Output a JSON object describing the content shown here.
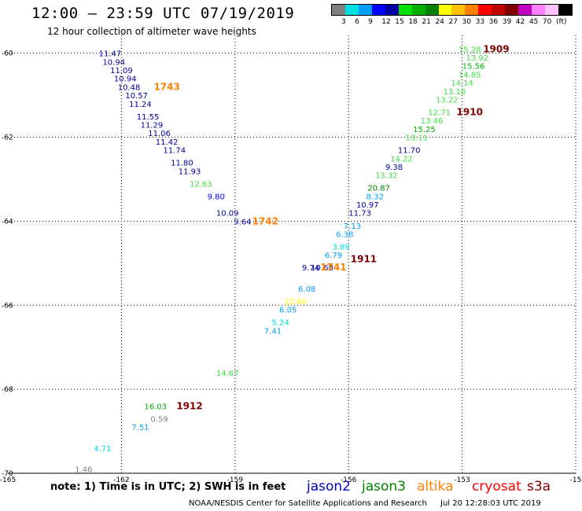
{
  "header": {
    "title": "12:00 – 23:59 UTC 07/19/2019",
    "subtitle": "12 hour collection of altimeter wave heights"
  },
  "colorbar": {
    "colors": [
      "#808080",
      "#00e0e0",
      "#00a0ff",
      "#0000ff",
      "#0000a0",
      "#00e000",
      "#00b000",
      "#008000",
      "#ffff00",
      "#ffc000",
      "#ff8000",
      "#ff0000",
      "#c00000",
      "#800000",
      "#c000c0",
      "#ff80ff",
      "#ffc0ff",
      "#000000"
    ],
    "labels": [
      "3",
      "6",
      "9",
      "12",
      "15",
      "18",
      "21",
      "24",
      "27",
      "30",
      "33",
      "36",
      "39",
      "42",
      "45",
      "70",
      "(ft)"
    ]
  },
  "axes": {
    "x_ticks": [
      "-165",
      "-162",
      "-159",
      "-156",
      "-153",
      "-15"
    ],
    "y_ticks": [
      "-60",
      "-62",
      "-64",
      "-66",
      "-68",
      "-70"
    ]
  },
  "chart_data": {
    "type": "table",
    "description_x": "longitude",
    "description_y": "latitude",
    "xlim": [
      -165,
      -150
    ],
    "ylim": [
      -70,
      -59.8
    ],
    "observations": [
      {
        "text": "11.47",
        "lon": -162.3,
        "lat": -60.0,
        "color": "#0000a0"
      },
      {
        "text": "10.94",
        "lon": -162.2,
        "lat": -60.2,
        "color": "#0000a0"
      },
      {
        "text": "11.09",
        "lon": -162.0,
        "lat": -60.4,
        "color": "#0000a0"
      },
      {
        "text": "10.94",
        "lon": -161.9,
        "lat": -60.6,
        "color": "#0000a0"
      },
      {
        "text": "10.48",
        "lon": -161.8,
        "lat": -60.8,
        "color": "#0000a0"
      },
      {
        "text": "10.57",
        "lon": -161.6,
        "lat": -61.0,
        "color": "#0000a0"
      },
      {
        "text": "11.24",
        "lon": -161.5,
        "lat": -61.2,
        "color": "#0000a0"
      },
      {
        "text": "11.55",
        "lon": -161.3,
        "lat": -61.5,
        "color": "#0000a0"
      },
      {
        "text": "11.29",
        "lon": -161.2,
        "lat": -61.7,
        "color": "#0000a0"
      },
      {
        "text": "11.06",
        "lon": -161.0,
        "lat": -61.9,
        "color": "#0000a0"
      },
      {
        "text": "11.42",
        "lon": -160.8,
        "lat": -62.1,
        "color": "#0000a0"
      },
      {
        "text": "11.74",
        "lon": -160.6,
        "lat": -62.3,
        "color": "#0000a0"
      },
      {
        "text": "11.80",
        "lon": -160.4,
        "lat": -62.6,
        "color": "#0000a0"
      },
      {
        "text": "11.93",
        "lon": -160.2,
        "lat": -62.8,
        "color": "#0000a0"
      },
      {
        "text": "12.63",
        "lon": -159.9,
        "lat": -63.1,
        "color": "#40e040"
      },
      {
        "text": "9.80",
        "lon": -159.5,
        "lat": -63.4,
        "color": "#0000ff"
      },
      {
        "text": "10.09",
        "lon": -159.2,
        "lat": -63.8,
        "color": "#0000a0"
      },
      {
        "text": "9.64",
        "lon": -158.8,
        "lat": -64.0,
        "color": "#0000a0"
      },
      {
        "text": "15.28",
        "lon": -152.8,
        "lat": -59.9,
        "color": "#40e040"
      },
      {
        "text": "13.92",
        "lon": -152.6,
        "lat": -60.1,
        "color": "#40e040"
      },
      {
        "text": "15.56",
        "lon": -152.7,
        "lat": -60.3,
        "color": "#00b000"
      },
      {
        "text": "14.85",
        "lon": -152.8,
        "lat": -60.5,
        "color": "#40e040"
      },
      {
        "text": "14.14",
        "lon": -153.0,
        "lat": -60.7,
        "color": "#40e040"
      },
      {
        "text": "13.18",
        "lon": -153.2,
        "lat": -60.9,
        "color": "#40e040"
      },
      {
        "text": "13.22",
        "lon": -153.4,
        "lat": -61.1,
        "color": "#40e040"
      },
      {
        "text": "12.71",
        "lon": -153.6,
        "lat": -61.4,
        "color": "#40e040"
      },
      {
        "text": "13.46",
        "lon": -153.8,
        "lat": -61.6,
        "color": "#40e040"
      },
      {
        "text": "15.25",
        "lon": -154.0,
        "lat": -61.8,
        "color": "#00b000"
      },
      {
        "text": "13.11",
        "lon": -154.2,
        "lat": -62.0,
        "color": "#40e040"
      },
      {
        "text": "11.70",
        "lon": -154.4,
        "lat": -62.3,
        "color": "#0000a0"
      },
      {
        "text": "14.22",
        "lon": -154.6,
        "lat": -62.5,
        "color": "#40e040"
      },
      {
        "text": "9.38",
        "lon": -154.8,
        "lat": -62.7,
        "color": "#0000a0"
      },
      {
        "text": "13.32",
        "lon": -155.0,
        "lat": -62.9,
        "color": "#40e040"
      },
      {
        "text": "20.87",
        "lon": -155.2,
        "lat": -63.2,
        "color": "#008000"
      },
      {
        "text": "8.32",
        "lon": -155.3,
        "lat": -63.4,
        "color": "#00a0ff"
      },
      {
        "text": "10.97",
        "lon": -155.5,
        "lat": -63.6,
        "color": "#0000a0"
      },
      {
        "text": "11.73",
        "lon": -155.7,
        "lat": -63.8,
        "color": "#0000a0"
      },
      {
        "text": "7.13",
        "lon": -155.9,
        "lat": -64.1,
        "color": "#00a0ff"
      },
      {
        "text": "6.38",
        "lon": -156.1,
        "lat": -64.3,
        "color": "#00a0ff"
      },
      {
        "text": "3.89",
        "lon": -156.2,
        "lat": -64.6,
        "color": "#00e0e0"
      },
      {
        "text": "6.79",
        "lon": -156.4,
        "lat": -64.8,
        "color": "#00a0ff"
      },
      {
        "text": "10.68",
        "lon": -156.7,
        "lat": -65.1,
        "color": "#0000a0"
      },
      {
        "text": "9.74",
        "lon": -157.0,
        "lat": -65.1,
        "color": "#0000a0"
      },
      {
        "text": "6.08",
        "lon": -157.1,
        "lat": -65.6,
        "color": "#00a0ff"
      },
      {
        "text": "22.60",
        "lon": -157.4,
        "lat": -65.9,
        "color": "#ffff00"
      },
      {
        "text": "6.05",
        "lon": -157.6,
        "lat": -66.1,
        "color": "#00a0ff"
      },
      {
        "text": "5.24",
        "lon": -157.8,
        "lat": -66.4,
        "color": "#00e0e0"
      },
      {
        "text": "7.41",
        "lon": -158.0,
        "lat": -66.6,
        "color": "#00a0ff"
      },
      {
        "text": "14.67",
        "lon": -159.2,
        "lat": -67.6,
        "color": "#40e040"
      },
      {
        "text": "16.03",
        "lon": -161.1,
        "lat": -68.4,
        "color": "#00b000"
      },
      {
        "text": "0.59",
        "lon": -161.0,
        "lat": -68.7,
        "color": "#808080"
      },
      {
        "text": "7.51",
        "lon": -161.5,
        "lat": -68.9,
        "color": "#00a0ff"
      },
      {
        "text": "4.71",
        "lon": -162.5,
        "lat": -69.4,
        "color": "#00e0e0"
      },
      {
        "text": "1.46",
        "lon": -163.0,
        "lat": -69.9,
        "color": "#808080"
      }
    ],
    "pass_labels": [
      {
        "text": "1743",
        "lon": -160.8,
        "lat": -60.8,
        "color": "#ff8000"
      },
      {
        "text": "1742",
        "lon": -158.2,
        "lat": -64.0,
        "color": "#ff8000"
      },
      {
        "text": "1741",
        "lon": -156.4,
        "lat": -65.1,
        "color": "#ff8000"
      },
      {
        "text": "1909",
        "lon": -152.1,
        "lat": -59.9,
        "color": "#800000"
      },
      {
        "text": "1910",
        "lon": -152.8,
        "lat": -61.4,
        "color": "#800000"
      },
      {
        "text": "1911",
        "lon": -155.6,
        "lat": -64.9,
        "color": "#800000"
      },
      {
        "text": "1912",
        "lon": -160.2,
        "lat": -68.4,
        "color": "#800000"
      }
    ]
  },
  "legend": {
    "note": "note: 1) Time is in UTC; 2) SWH is in feet",
    "satellites": [
      {
        "name": "jason2",
        "color": "#0000c0"
      },
      {
        "name": "jason3",
        "color": "#008000"
      },
      {
        "name": "altika",
        "color": "#ff8000"
      },
      {
        "name": "cryosat",
        "color": "#ff0000"
      },
      {
        "name": "s3a",
        "color": "#800000"
      }
    ]
  },
  "footer": {
    "credit": "NOAA/NESDIS Center for Satellite Applications and Research",
    "timestamp": "Jul 20 12:28:03 UTC 2019"
  }
}
